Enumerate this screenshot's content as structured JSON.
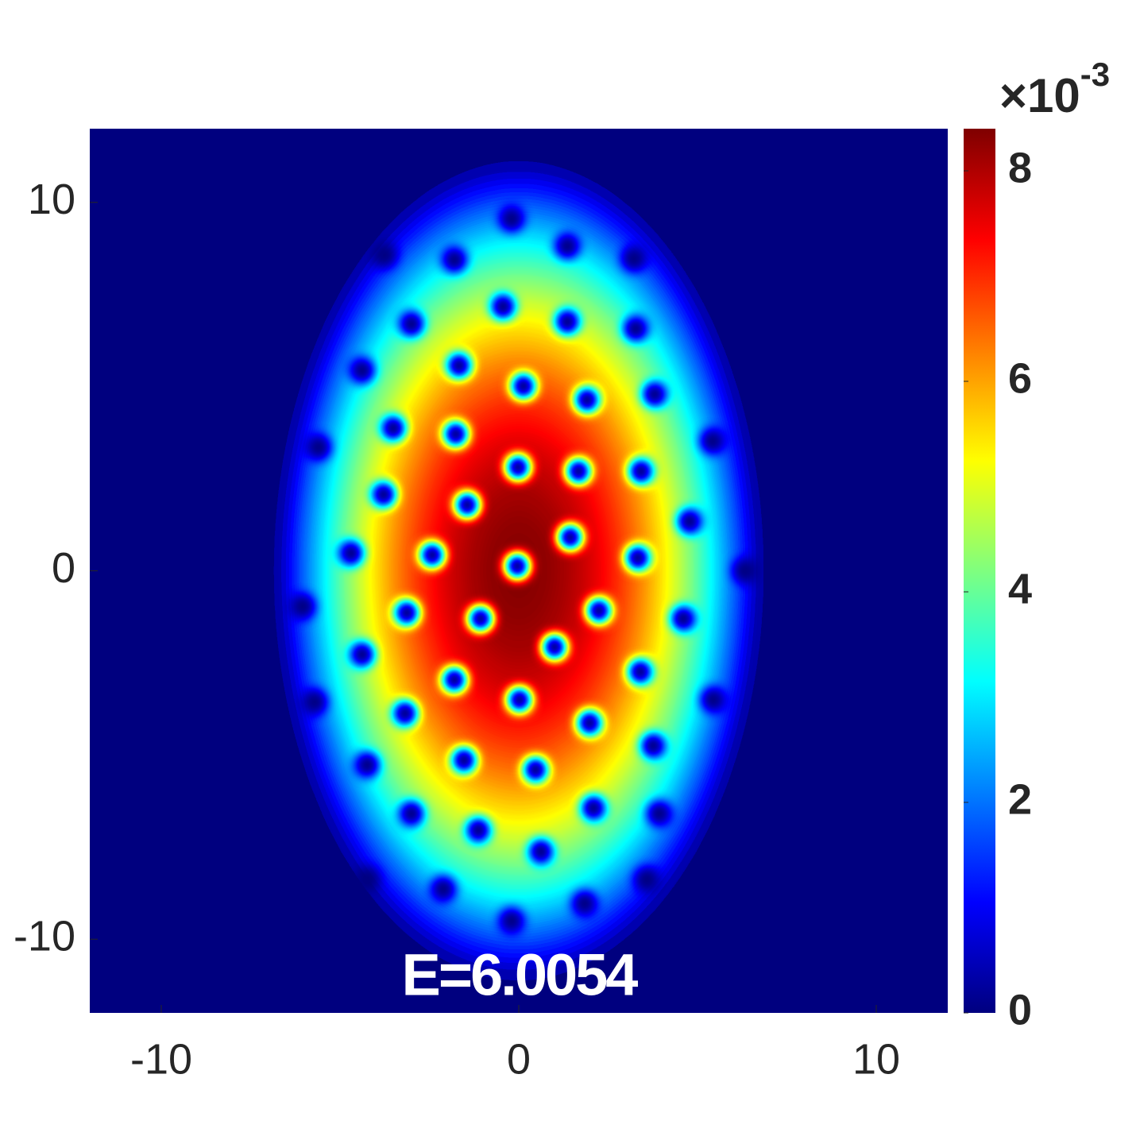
{
  "chart_data": {
    "type": "density",
    "xlim": [
      -12,
      12
    ],
    "ylim": [
      -12,
      12
    ],
    "xticks": [
      -10,
      0,
      10
    ],
    "yticks": [
      -10,
      0,
      10
    ],
    "clim": [
      0,
      8.4
    ],
    "cticks": [
      0,
      2,
      4,
      6,
      8
    ],
    "colorbar_multiplier": "×10",
    "colorbar_exponent": "-3",
    "colormap": "jet",
    "annotation": "E=6.0054",
    "cloud": {
      "peak": 8.4,
      "center": [
        0,
        0
      ],
      "radius_x": 6.8,
      "radius_y": 11.2
    },
    "vortex_radius": 0.35,
    "vortices": {
      "x": [
        -0.2,
        -3.76,
        -1.8,
        1.36,
        3.22,
        -0.44,
        -3.0,
        1.36,
        3.27,
        -4.38,
        -1.67,
        0.13,
        1.91,
        3.8,
        -5.6,
        -3.51,
        -1.76,
        -0.02,
        1.67,
        3.42,
        5.42,
        -3.78,
        -1.44,
        1.44,
        4.78,
        -4.69,
        -2.42,
        -0.04,
        3.33,
        6.33,
        -6.04,
        -3.13,
        -1.07,
        2.24,
        4.6,
        -4.38,
        1.0,
        3.4,
        -5.71,
        -1.8,
        0.02,
        1.98,
        5.44,
        -3.18,
        -4.24,
        -1.53,
        0.47,
        3.76,
        -3.0,
        -1.13,
        2.09,
        3.93,
        0.62,
        -4.24,
        -2.11,
        1.84,
        3.58,
        -0.2
      ],
      "y": [
        9.55,
        8.57,
        8.44,
        8.81,
        8.47,
        7.17,
        6.7,
        6.76,
        6.57,
        5.44,
        5.57,
        5.01,
        4.64,
        4.79,
        3.35,
        3.87,
        3.71,
        2.81,
        2.7,
        2.7,
        3.52,
        2.07,
        1.79,
        0.91,
        1.34,
        0.48,
        0.43,
        0.13,
        0.35,
        0.0,
        -0.97,
        -1.14,
        -1.3,
        -1.08,
        -1.3,
        -2.27,
        -2.07,
        -2.74,
        -3.56,
        -2.96,
        -3.5,
        -4.13,
        -3.5,
        -3.87,
        -5.27,
        -5.14,
        -5.4,
        -4.75,
        -6.59,
        -7.04,
        -6.44,
        -6.59,
        -7.62,
        -8.38,
        -8.64,
        -9.03,
        -8.38,
        -9.5
      ]
    }
  }
}
